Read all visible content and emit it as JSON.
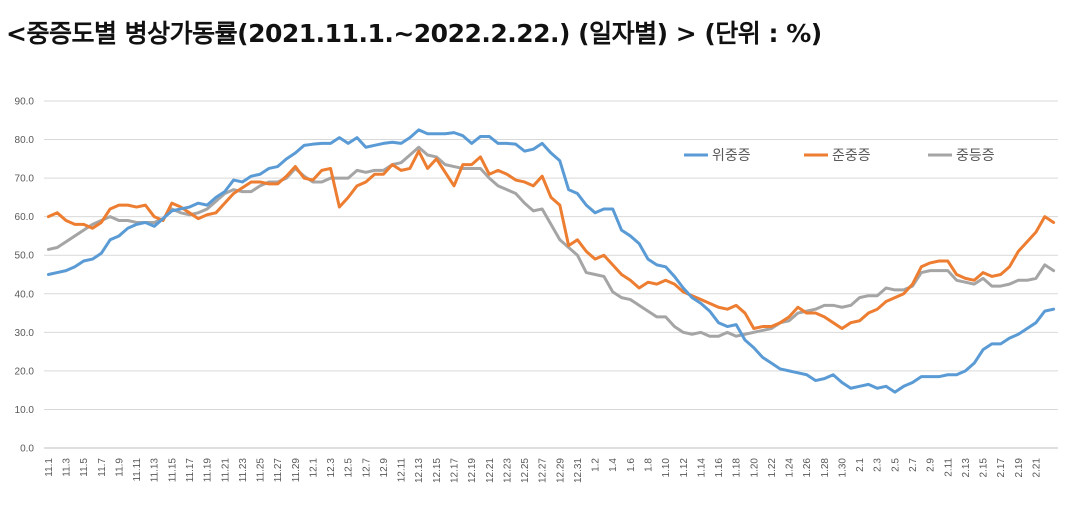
{
  "chart_data": {
    "type": "line",
    "title": "<중증도별 병상가동률(2021.11.1.~2022.2.22.) (일자별) > (단위 : %)",
    "xlabel": "",
    "ylabel": "",
    "ylim": [
      0,
      90
    ],
    "yticks": [
      "0.0",
      "10.0",
      "20.0",
      "30.0",
      "40.0",
      "50.0",
      "60.0",
      "70.0",
      "80.0",
      "90.0"
    ],
    "grid": true,
    "legend_position": "top-right",
    "x_tick_labels": [
      "11.1",
      "11.3",
      "11.5",
      "11.7",
      "11.9",
      "11.11",
      "11.13",
      "11.15",
      "11.17",
      "11.19",
      "11.21",
      "11.23",
      "11.25",
      "11.27",
      "11.29",
      "12.1",
      "12.3",
      "12.5",
      "12.7",
      "12.9",
      "12.11",
      "12.13",
      "12.15",
      "12.17",
      "12.19",
      "12.21",
      "12.23",
      "12.25",
      "12.27",
      "12.29",
      "12.31",
      "1.2",
      "1.4",
      "1.6",
      "1.8",
      "1.10",
      "1.12",
      "1.14",
      "1.16",
      "1.18",
      "1.20",
      "1.22",
      "1.24",
      "1.26",
      "1.28",
      "1.30",
      "2.1",
      "2.3",
      "2.5",
      "2.7",
      "2.9",
      "2.11",
      "2.13",
      "2.15",
      "2.17",
      "2.19",
      "2.21"
    ],
    "series": [
      {
        "name": "위중증",
        "color": "#5b9bd5",
        "values": [
          45.0,
          45.5,
          46.0,
          47.0,
          48.5,
          49.0,
          50.5,
          54.0,
          55.0,
          57.0,
          58.0,
          58.5,
          57.5,
          59.5,
          61.5,
          62.0,
          62.5,
          63.5,
          63.0,
          65.0,
          66.5,
          69.5,
          69.0,
          70.5,
          71.0,
          72.5,
          73.0,
          75.0,
          76.5,
          78.5,
          78.8,
          79.0,
          79.0,
          80.5,
          79.0,
          80.5,
          78.0,
          78.5,
          79.0,
          79.3,
          79.0,
          80.5,
          82.5,
          81.5,
          81.5,
          81.5,
          81.8,
          81.0,
          79.0,
          80.8,
          80.8,
          79.0,
          79.0,
          78.8,
          77.0,
          77.5,
          79.0,
          76.5,
          74.5,
          67.0,
          66.0,
          63.0,
          61.0,
          62.0,
          62.0,
          56.5,
          55.0,
          53.0,
          49.0,
          47.5,
          47.0,
          44.5,
          41.5,
          39.0,
          37.5,
          35.5,
          32.5,
          31.5,
          32.0,
          28.0,
          26.0,
          23.5,
          22.0,
          20.5,
          20.0,
          19.5,
          19.0,
          17.5,
          18.0,
          19.0,
          17.0,
          15.5,
          16.0,
          16.5,
          15.5,
          16.0,
          14.5,
          16.0,
          17.0,
          18.5,
          18.5,
          18.5,
          19.0,
          19.0,
          20.0,
          22.0,
          25.5,
          27.0,
          27.0,
          28.5,
          29.5,
          31.0,
          32.5,
          35.5,
          36.0
        ]
      },
      {
        "name": "준중증",
        "color": "#ed7d31",
        "values": [
          60.0,
          61.0,
          59.0,
          58.0,
          58.0,
          57.0,
          58.5,
          62.0,
          63.0,
          63.0,
          62.5,
          63.0,
          60.0,
          59.0,
          63.5,
          62.5,
          61.0,
          59.5,
          60.5,
          61.0,
          63.5,
          66.0,
          67.5,
          69.0,
          69.0,
          68.5,
          68.5,
          70.5,
          73.0,
          70.0,
          69.5,
          72.0,
          72.5,
          62.5,
          65.0,
          68.0,
          69.0,
          71.0,
          71.0,
          73.5,
          72.0,
          72.5,
          77.0,
          72.5,
          75.0,
          71.5,
          68.0,
          73.5,
          73.5,
          75.5,
          71.0,
          72.0,
          71.0,
          69.5,
          69.0,
          68.0,
          70.5,
          65.0,
          63.0,
          52.5,
          54.0,
          51.0,
          49.0,
          50.0,
          47.5,
          45.0,
          43.5,
          41.5,
          43.0,
          42.5,
          43.5,
          42.5,
          40.5,
          39.5,
          38.5,
          37.5,
          36.5,
          36.0,
          37.0,
          35.0,
          31.0,
          31.5,
          31.5,
          32.5,
          34.0,
          36.5,
          35.0,
          35.0,
          34.0,
          32.5,
          31.0,
          32.5,
          33.0,
          35.0,
          36.0,
          38.0,
          39.0,
          40.0,
          42.5,
          47.0,
          48.0,
          48.5,
          48.5,
          45.0,
          44.0,
          43.5,
          45.5,
          44.5,
          45.0,
          47.0,
          51.0,
          53.5,
          56.0,
          60.0,
          58.5
        ]
      },
      {
        "name": "중등증",
        "color": "#a5a5a5",
        "values": [
          51.5,
          52.0,
          53.5,
          55.0,
          56.5,
          58.0,
          59.0,
          60.0,
          59.0,
          59.0,
          58.5,
          58.5,
          58.5,
          59.5,
          62.0,
          61.0,
          60.5,
          61.0,
          62.0,
          64.0,
          66.0,
          67.0,
          66.5,
          66.5,
          68.0,
          69.0,
          69.0,
          70.0,
          72.5,
          70.5,
          69.0,
          69.0,
          70.0,
          70.0,
          70.0,
          72.0,
          71.5,
          72.0,
          72.0,
          73.5,
          74.0,
          76.0,
          78.0,
          76.0,
          75.5,
          73.5,
          73.0,
          72.5,
          72.5,
          72.5,
          70.0,
          68.0,
          67.0,
          66.0,
          63.5,
          61.5,
          62.0,
          58.0,
          54.0,
          52.0,
          50.0,
          45.5,
          45.0,
          44.5,
          40.5,
          39.0,
          38.5,
          37.0,
          35.5,
          34.0,
          34.0,
          31.5,
          30.0,
          29.5,
          30.0,
          29.0,
          29.0,
          30.0,
          29.0,
          29.5,
          30.0,
          30.5,
          31.0,
          32.5,
          33.0,
          35.0,
          35.5,
          36.0,
          37.0,
          37.0,
          36.5,
          37.0,
          39.0,
          39.5,
          39.5,
          41.5,
          41.0,
          41.0,
          42.0,
          45.5,
          46.0,
          46.0,
          46.0,
          43.5,
          43.0,
          42.5,
          44.0,
          42.0,
          42.0,
          42.5,
          43.5,
          43.5,
          44.0,
          47.5,
          46.0
        ]
      }
    ]
  }
}
